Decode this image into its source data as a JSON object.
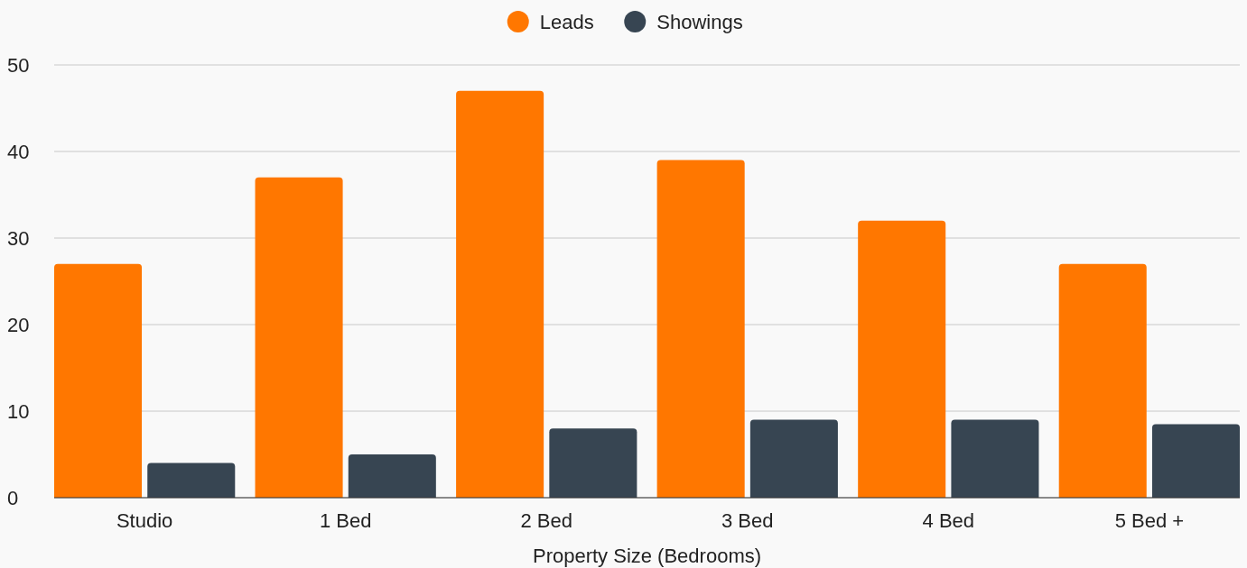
{
  "chart_data": {
    "type": "bar",
    "xlabel": "Property Size (Bedrooms)",
    "categories": [
      "Studio",
      "1 Bed",
      "2 Bed",
      "3 Bed",
      "4 Bed",
      "5 Bed +"
    ],
    "series": [
      {
        "name": "Leads",
        "color": "#ff7700",
        "values": [
          27,
          37,
          47,
          39,
          32,
          27
        ]
      },
      {
        "name": "Showings",
        "color": "#374552",
        "values": [
          4,
          5,
          8,
          9,
          9,
          8.5
        ]
      }
    ],
    "ylim": [
      0,
      50
    ],
    "yticks": [
      0,
      10,
      20,
      30,
      40,
      50
    ],
    "grid": "y",
    "legend": "top"
  }
}
